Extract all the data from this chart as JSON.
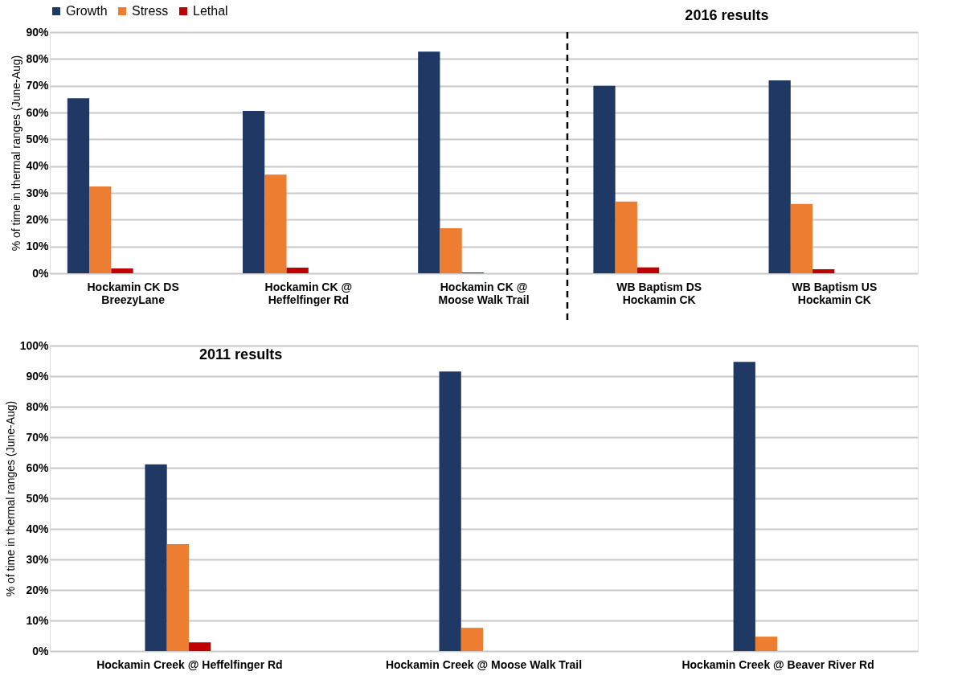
{
  "chart_data": [
    {
      "type": "bar",
      "ylabel": "% of time in thermal ranges (June-Aug)",
      "categories": [
        "Hockamin CK DS\nBreezyLane",
        "Hockamin CK @\nHeffelfinger Rd",
        "Hockamin CK @\nMoose Walk Trail",
        "WB Baptism DS\nHockamin CK",
        "WB Baptism US\nHockamin CK"
      ],
      "series": [
        {
          "name": "Growth",
          "color": "#1f3864",
          "values": [
            65.3,
            60.6,
            82.7,
            70,
            72
          ]
        },
        {
          "name": "Stress",
          "color": "#ed7d31",
          "values": [
            32.4,
            36.8,
            16.8,
            26.8,
            25.9
          ]
        },
        {
          "name": "Lethal",
          "color": "#c00000",
          "values": [
            1.8,
            2.1,
            0.3,
            2.2,
            1.5
          ]
        }
      ],
      "ylim": [
        0,
        90
      ],
      "yticks": [
        {
          "value": 0,
          "label": "0%"
        },
        {
          "value": 10,
          "label": "10%"
        },
        {
          "value": 20,
          "label": "20%"
        },
        {
          "value": 30,
          "label": "30%"
        },
        {
          "value": 40,
          "label": "40%"
        },
        {
          "value": 50,
          "label": "50%"
        },
        {
          "value": 60,
          "label": "60%"
        },
        {
          "value": 70,
          "label": "70%"
        },
        {
          "value": 80,
          "label": "80%"
        },
        {
          "value": 90,
          "label": "90%"
        }
      ],
      "grid": "y",
      "legend": "top",
      "annotations": [
        "2016 results"
      ],
      "ref_lines": [
        {
          "axis": "x",
          "value": "WB Baptism DS\nHockamin CK",
          "label": null,
          "line_style": "dashed",
          "color": "#000000"
        }
      ]
    },
    {
      "type": "bar",
      "ylabel": "% of time in thermal ranges (June-Aug)",
      "categories": [
        "Hockamin Creek @ Heffelfinger Rd",
        "Hockamin Creek @ Moose Walk Trail",
        "Hockamin Creek @ Beaver River Rd"
      ],
      "series": [
        {
          "color": "#1f3864",
          "values": [
            61.1,
            91.5,
            94.7
          ]
        },
        {
          "color": "#ed7d31",
          "values": [
            35.0,
            7.6,
            4.7
          ]
        },
        {
          "color": "#c00000",
          "values": [
            2.8,
            null,
            null
          ]
        }
      ],
      "ylim": [
        0,
        100
      ],
      "yticks": [
        {
          "value": 0,
          "label": "0%"
        },
        {
          "value": 10,
          "label": "10%"
        },
        {
          "value": 20,
          "label": "20%"
        },
        {
          "value": 30,
          "label": "30%"
        },
        {
          "value": 40,
          "label": "40%"
        },
        {
          "value": 50,
          "label": "50%"
        },
        {
          "value": 60,
          "label": "60%"
        },
        {
          "value": 70,
          "label": "70%"
        },
        {
          "value": 80,
          "label": "80%"
        },
        {
          "value": 90,
          "label": "90%"
        },
        {
          "value": 100,
          "label": "100%"
        }
      ],
      "grid": "y",
      "legend": false,
      "annotations": [
        "2011 results"
      ]
    }
  ]
}
